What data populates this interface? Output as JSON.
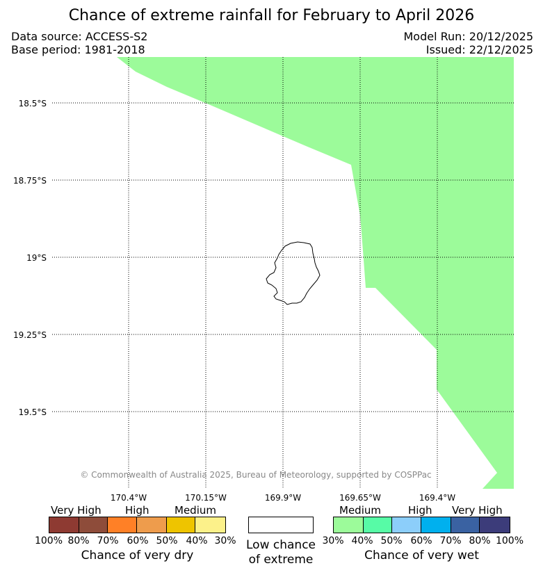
{
  "title": "Chance of extreme rainfall for February to April 2026",
  "meta": {
    "data_source": "Data source: ACCESS-S2",
    "base_period": "Base period: 1981-2018",
    "model_run": "Model Run: 20/12/2025",
    "issued": "Issued: 22/12/2025"
  },
  "map": {
    "lat_labels": [
      "18.5°S",
      "18.75°S",
      "19°S",
      "19.25°S",
      "19.5°S"
    ],
    "lon_labels": [
      "170.4°W",
      "170.15°W",
      "169.9°W",
      "169.65°W",
      "169.4°W"
    ],
    "wet_region_color": "#9cfb9a",
    "wet_region_category": "Medium chance of very wet (30%-40%)",
    "island_outline": "black coastline",
    "copyright": "© Commonwealth of Australia 2025, Bureau of Meteorology, supported by COSPPac"
  },
  "legend": {
    "dry": {
      "headers": [
        "Very High",
        "High",
        "Medium"
      ],
      "ticks": [
        "100%",
        "80%",
        "70%",
        "60%",
        "50%",
        "40%",
        "30%"
      ],
      "colors": [
        "#8e3a32",
        "#8e4c3a",
        "#ff8026",
        "#ee9c4c",
        "#eec400",
        "#fcf18a"
      ],
      "caption": "Chance of very dry"
    },
    "low": {
      "color": "#ffffff",
      "caption_line1": "Low chance",
      "caption_line2": "of extreme"
    },
    "wet": {
      "headers": [
        "Medium",
        "High",
        "Very High"
      ],
      "ticks": [
        "30%",
        "40%",
        "50%",
        "60%",
        "70%",
        "80%",
        "100%"
      ],
      "colors": [
        "#9cfb9a",
        "#57fba6",
        "#8ccefa",
        "#00b0ee",
        "#3a62a2",
        "#3c3c7a"
      ],
      "caption": "Chance of very wet"
    }
  }
}
